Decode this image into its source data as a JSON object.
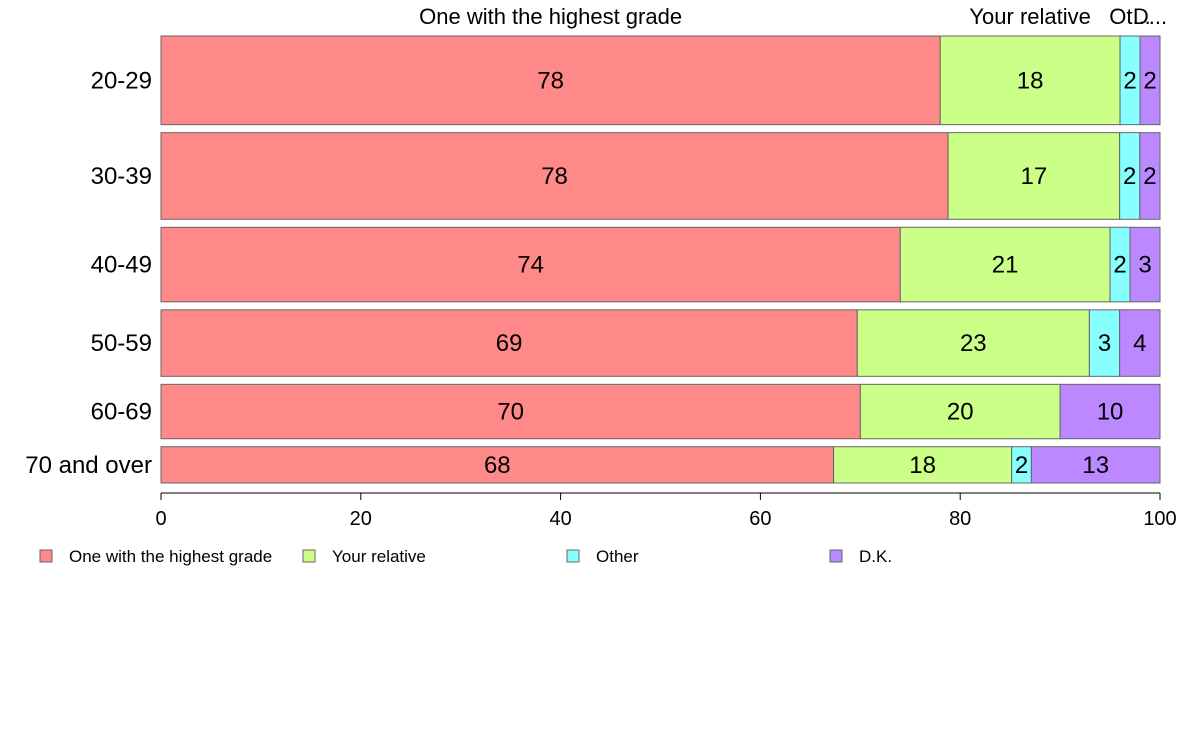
{
  "chart_data": {
    "type": "bar",
    "orientation": "horizontal",
    "stacked": true,
    "normalized": "percent",
    "categories": [
      "20-29",
      "30-39",
      "40-49",
      "50-59",
      "60-69",
      "70 and over"
    ],
    "series": [
      {
        "name": "One with the highest grade",
        "values": [
          78,
          78,
          74,
          69,
          70,
          68
        ],
        "color": "#FF8888"
      },
      {
        "name": "Your relative",
        "values": [
          18,
          17,
          21,
          23,
          20,
          18
        ],
        "color": "#CCFF88"
      },
      {
        "name": "Other",
        "values": [
          2,
          2,
          2,
          3,
          0,
          2
        ],
        "color": "#88FFFF"
      },
      {
        "name": "D.K.",
        "values": [
          2,
          2,
          3,
          4,
          10,
          13
        ],
        "color": "#BB88FF"
      }
    ],
    "category_weights": [
      88,
      86,
      74,
      66,
      54,
      36
    ],
    "top_labels": [
      "One with the highest grade",
      "Your relative",
      "Ot...",
      "D..."
    ],
    "xlim": [
      0,
      100
    ],
    "xticks": [
      0,
      20,
      40,
      60,
      80,
      100
    ],
    "title": "",
    "xlabel": "",
    "ylabel": "",
    "grid": false,
    "legend_position": "bottom-left"
  }
}
